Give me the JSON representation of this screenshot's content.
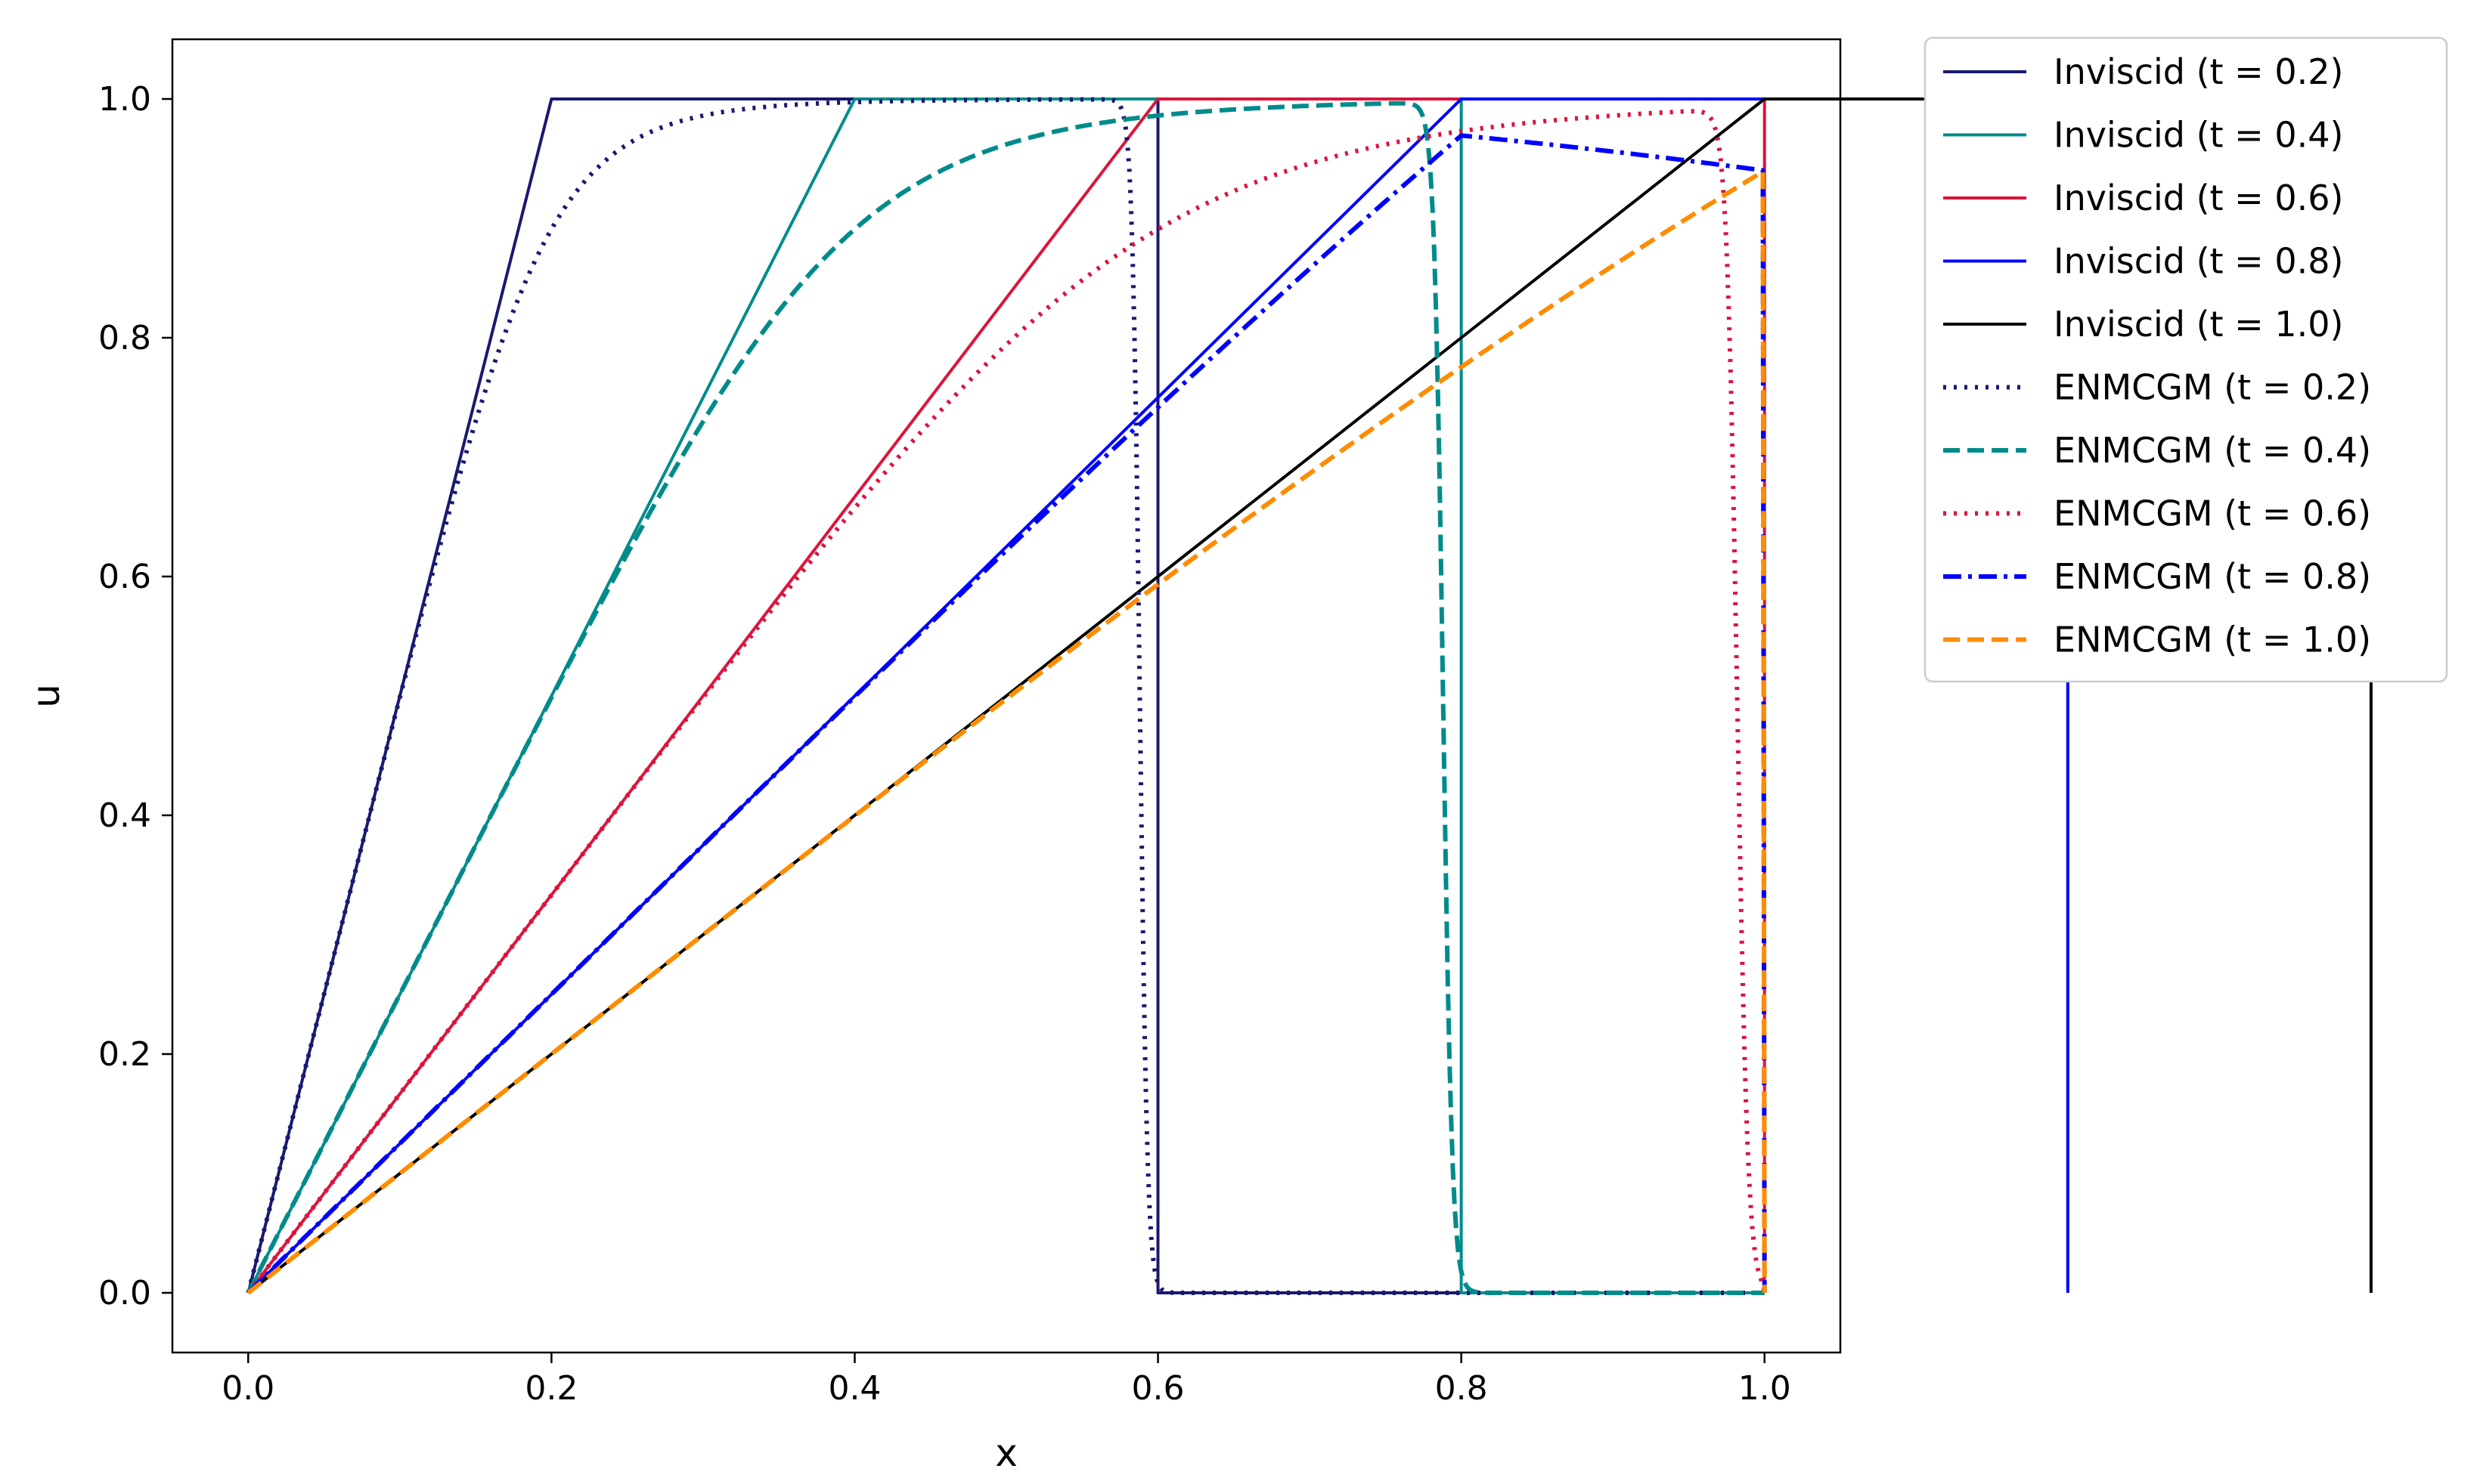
{
  "chart_data": {
    "type": "line",
    "title": "",
    "xlabel": "x",
    "ylabel": "u",
    "xlim": [
      -0.05,
      1.05
    ],
    "ylim": [
      -0.05,
      1.05
    ],
    "xticks": [
      "0.0",
      "0.2",
      "0.4",
      "0.6",
      "0.8",
      "1.0"
    ],
    "yticks": [
      "0.0",
      "0.2",
      "0.4",
      "0.6",
      "0.8",
      "1.0"
    ],
    "grid": false,
    "legend_position": "outside-right-top",
    "series": [
      {
        "name": "Inviscid (t = 0.2)",
        "kind": "inviscid",
        "t": 0.2,
        "color": "#191970",
        "style": "solid"
      },
      {
        "name": "Inviscid (t = 0.4)",
        "kind": "inviscid",
        "t": 0.4,
        "color": "#008b8b",
        "style": "solid"
      },
      {
        "name": "Inviscid (t = 0.6)",
        "kind": "inviscid",
        "t": 0.6,
        "color": "#dc143c",
        "style": "solid"
      },
      {
        "name": "Inviscid (t = 0.8)",
        "kind": "inviscid",
        "t": 0.8,
        "color": "#0000ff",
        "style": "solid"
      },
      {
        "name": "Inviscid (t = 1.0)",
        "kind": "inviscid",
        "t": 1.0,
        "color": "#000000",
        "style": "solid"
      },
      {
        "name": "ENMCGM (t = 0.2)",
        "kind": "viscous",
        "t": 0.2,
        "color": "#191970",
        "style": "dotted"
      },
      {
        "name": "ENMCGM (t = 0.4)",
        "kind": "viscous",
        "t": 0.4,
        "color": "#008b8b",
        "style": "dashed"
      },
      {
        "name": "ENMCGM (t = 0.6)",
        "kind": "viscous",
        "t": 0.6,
        "color": "#dc143c",
        "style": "dotted"
      },
      {
        "name": "ENMCGM (t = 0.8)",
        "kind": "viscous",
        "t": 0.8,
        "color": "#0000ff",
        "style": "dashdot"
      },
      {
        "name": "ENMCGM (t = 1.0)",
        "kind": "viscous",
        "t": 1.0,
        "color": "#ff8c00",
        "style": "dashed"
      }
    ]
  }
}
